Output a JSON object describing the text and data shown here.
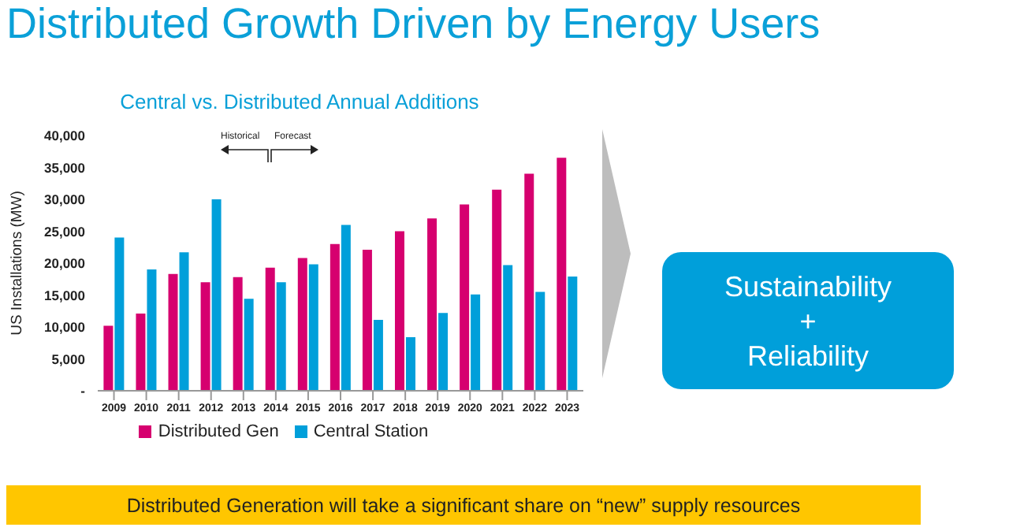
{
  "chart_data": {
    "type": "bar",
    "title": "Distributed Growth Driven by Energy Users",
    "subtitle": "Central vs. Distributed Annual Additions",
    "ylabel": "US Installations (MW)",
    "categories": [
      "2009",
      "2010",
      "2011",
      "2012",
      "2013",
      "2014",
      "2015",
      "2016",
      "2017",
      "2018",
      "2019",
      "2020",
      "2021",
      "2022",
      "2023"
    ],
    "series": [
      {
        "name": "Distributed Gen",
        "color": "#d6006f",
        "values": [
          10200,
          12100,
          18300,
          17000,
          17800,
          19300,
          20800,
          23000,
          22100,
          25000,
          27000,
          29200,
          31500,
          34000,
          36500
        ]
      },
      {
        "name": "Central Station",
        "color": "#009fda",
        "values": [
          24000,
          19000,
          21700,
          30000,
          14400,
          17000,
          19800,
          26000,
          11100,
          8400,
          12200,
          15100,
          19700,
          15500,
          17900
        ]
      }
    ],
    "ylim": [
      0,
      40000
    ],
    "yticks": [
      {
        "value": 0,
        "label": "-"
      },
      {
        "value": 5000,
        "label": "5,000"
      },
      {
        "value": 10000,
        "label": "10,000"
      },
      {
        "value": 15000,
        "label": "15,000"
      },
      {
        "value": 20000,
        "label": "20,000"
      },
      {
        "value": 25000,
        "label": "25,000"
      },
      {
        "value": 30000,
        "label": "30,000"
      },
      {
        "value": 35000,
        "label": "35,000"
      },
      {
        "value": 40000,
        "label": "40,000"
      }
    ],
    "grid": false,
    "legend": "bottom",
    "annotations": [
      "Historical",
      "Forecast",
      "Sustainability\n+\nReliability",
      "Distributed Generation will take a significant share on “new” supply resources"
    ]
  }
}
